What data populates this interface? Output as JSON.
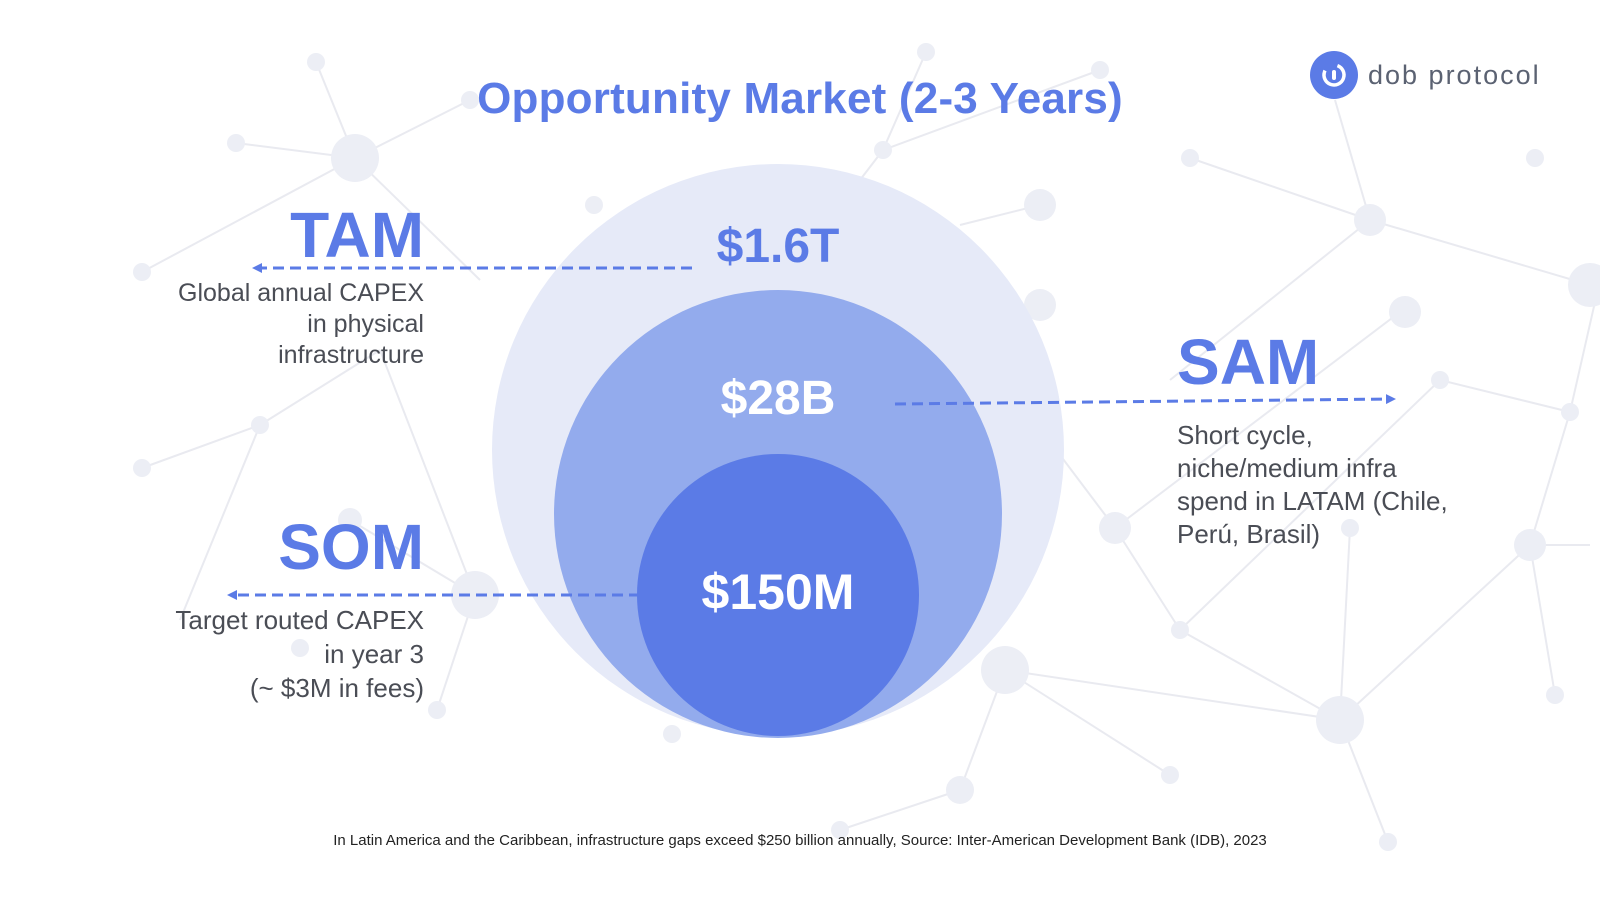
{
  "title": "Opportunity Market (2-3 Years)",
  "brand": {
    "name": "dob protocol",
    "color": "#5b7be6"
  },
  "markets": {
    "tam": {
      "label": "TAM",
      "value": "$1.6T",
      "description": [
        "Global annual CAPEX",
        "in physical",
        "infrastructure"
      ]
    },
    "sam": {
      "label": "SAM",
      "value": "$28B",
      "description": [
        "Short cycle,",
        "niche/medium infra",
        "spend in LATAM (Chile,",
        "Perú, Brasil)"
      ]
    },
    "som": {
      "label": "SOM",
      "value": "$150M",
      "description": [
        "Target routed CAPEX",
        "in year 3",
        "(~ $3M in fees)"
      ]
    }
  },
  "footnote": "In Latin America and the Caribbean, infrastructure gaps exceed $250 billion annually, Source: Inter-American Development Bank (IDB), 2023",
  "colors": {
    "accent": "#5b7be6",
    "tam_circle": "#e6eaf8",
    "sam_circle": "#93abed",
    "som_circle": "#5b7be6",
    "text_dark": "#4a4d55"
  }
}
